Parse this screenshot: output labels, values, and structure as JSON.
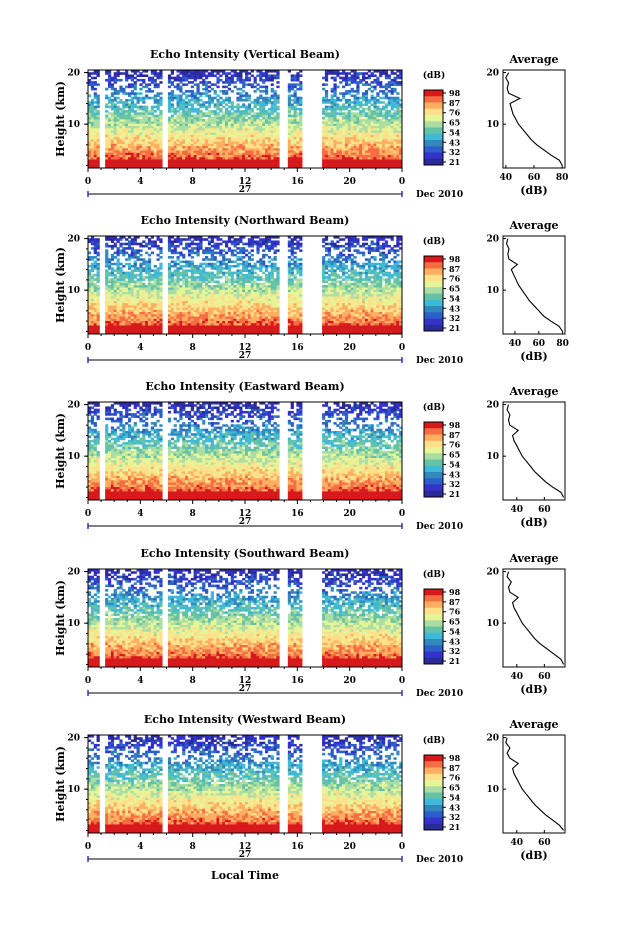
{
  "global": {
    "xlabel": "Local Time",
    "month_label": "Dec 2010",
    "day_label": "27"
  },
  "colorbar": {
    "unit": "(dB)",
    "ticks": [
      "98",
      "87",
      "76",
      "65",
      "54",
      "43",
      "32",
      "21"
    ],
    "colors": [
      "#d7191c",
      "#f46d43",
      "#fdae61",
      "#fee08b",
      "#e6f598",
      "#abdda4",
      "#66c2a5",
      "#3fb9d8",
      "#3288bd",
      "#2c5fc7",
      "#3333cc",
      "#2a2a99"
    ]
  },
  "panels": [
    {
      "title": "Echo Intensity (Vertical Beam)",
      "ylabel": "Height (km)",
      "xticks": [
        "0",
        "4",
        "8",
        "12",
        "16",
        "20",
        "0"
      ],
      "yticks": [
        "20",
        "10"
      ],
      "colorbar_ticks": [
        "98",
        "87",
        "76",
        "65",
        "54",
        "43",
        "32",
        "21"
      ],
      "avg_title": "Average",
      "avg_xlabel": "(dB)",
      "avg_xticks": [
        "40",
        "60",
        "80"
      ],
      "avg_yticks": [
        "20",
        "10"
      ]
    },
    {
      "title": "Echo Intensity (Northward Beam)",
      "ylabel": "Height (km)",
      "xticks": [
        "0",
        "4",
        "8",
        "12",
        "16",
        "20",
        "0"
      ],
      "yticks": [
        "20",
        "10"
      ],
      "colorbar_ticks": [
        "98",
        "87",
        "76",
        "65",
        "54",
        "43",
        "32",
        "21"
      ],
      "avg_title": "Average",
      "avg_xlabel": "(dB)",
      "avg_xticks": [
        "40",
        "60",
        "80"
      ],
      "avg_yticks": [
        "20",
        "10"
      ]
    },
    {
      "title": "Echo Intensity (Eastward Beam)",
      "ylabel": "Height (km)",
      "xticks": [
        "0",
        "4",
        "8",
        "12",
        "16",
        "20",
        "0"
      ],
      "yticks": [
        "20",
        "10"
      ],
      "colorbar_ticks": [
        "98",
        "87",
        "76",
        "65",
        "54",
        "43",
        "32",
        "21"
      ],
      "avg_title": "Average",
      "avg_xlabel": "(dB)",
      "avg_xticks": [
        "40",
        "60"
      ],
      "avg_yticks": [
        "20",
        "10"
      ]
    },
    {
      "title": "Echo Intensity (Southward Beam)",
      "ylabel": "Height (km)",
      "xticks": [
        "0",
        "4",
        "8",
        "12",
        "16",
        "20",
        "0"
      ],
      "yticks": [
        "20",
        "10"
      ],
      "colorbar_ticks": [
        "98",
        "87",
        "76",
        "65",
        "54",
        "43",
        "32",
        "21"
      ],
      "avg_title": "Average",
      "avg_xlabel": "(dB)",
      "avg_xticks": [
        "40",
        "60"
      ],
      "avg_yticks": [
        "20",
        "10"
      ]
    },
    {
      "title": "Echo Intensity (Westward Beam)",
      "ylabel": "Height (km)",
      "xticks": [
        "0",
        "4",
        "8",
        "12",
        "16",
        "20",
        "0"
      ],
      "yticks": [
        "20",
        "10"
      ],
      "colorbar_ticks": [
        "98",
        "87",
        "76",
        "65",
        "54",
        "43",
        "32",
        "21"
      ],
      "avg_title": "Average",
      "avg_xlabel": "(dB)",
      "avg_xticks": [
        "40",
        "60"
      ],
      "avg_yticks": [
        "20",
        "10"
      ]
    }
  ],
  "chart_data": [
    {
      "type": "heatmap",
      "title": "Echo Intensity (Vertical Beam)",
      "xlabel": "Local Time",
      "ylabel": "Height (km)",
      "xlim": [
        0,
        24
      ],
      "ylim": [
        1.5,
        20.5
      ],
      "colorbar": {
        "label": "(dB)",
        "range": [
          21,
          98
        ]
      },
      "data_gaps_hours": [
        [
          0.9,
          1.4
        ],
        [
          5.7,
          6.1
        ],
        [
          14.7,
          15.2
        ],
        [
          16.3,
          17.9
        ]
      ],
      "profile": {
        "title": "Average",
        "xlabel": "(dB)",
        "xlim": [
          38,
          82
        ],
        "height_km": [
          2,
          3,
          4,
          5,
          6,
          7,
          8,
          9,
          10,
          11,
          12,
          13,
          14,
          15,
          16,
          17,
          18,
          19,
          20
        ],
        "db": [
          80,
          78,
          72,
          67,
          62,
          58,
          55,
          52,
          49,
          47,
          45,
          44,
          43,
          50,
          42,
          41,
          42,
          40,
          42
        ]
      }
    },
    {
      "type": "heatmap",
      "title": "Echo Intensity (Northward Beam)",
      "xlabel": "Local Time",
      "ylabel": "Height (km)",
      "xlim": [
        0,
        24
      ],
      "ylim": [
        1.5,
        20.5
      ],
      "colorbar": {
        "label": "(dB)",
        "range": [
          21,
          98
        ]
      },
      "data_gaps_hours": [
        [
          0.9,
          1.4
        ],
        [
          5.7,
          6.1
        ],
        [
          14.7,
          15.2
        ],
        [
          16.3,
          17.9
        ]
      ],
      "profile": {
        "title": "Average",
        "xlabel": "(dB)",
        "xlim": [
          30,
          82
        ],
        "height_km": [
          2,
          3,
          4,
          5,
          6,
          7,
          8,
          9,
          10,
          11,
          12,
          13,
          14,
          15,
          16,
          17,
          18,
          19,
          20
        ],
        "db": [
          80,
          77,
          70,
          64,
          60,
          56,
          52,
          49,
          46,
          43,
          41,
          39,
          37,
          42,
          35,
          34,
          35,
          33,
          34
        ]
      }
    },
    {
      "type": "heatmap",
      "title": "Echo Intensity (Eastward Beam)",
      "xlabel": "Local Time",
      "ylabel": "Height (km)",
      "xlim": [
        0,
        24
      ],
      "ylim": [
        1.5,
        20.5
      ],
      "colorbar": {
        "label": "(dB)",
        "range": [
          21,
          98
        ]
      },
      "data_gaps_hours": [
        [
          0.9,
          1.4
        ],
        [
          5.7,
          6.1
        ],
        [
          14.7,
          15.2
        ],
        [
          16.3,
          17.9
        ]
      ],
      "profile": {
        "title": "Average",
        "xlabel": "(dB)",
        "xlim": [
          30,
          75
        ],
        "height_km": [
          2,
          3,
          4,
          5,
          6,
          7,
          8,
          9,
          10,
          11,
          12,
          13,
          14,
          15,
          16,
          17,
          18,
          19,
          20
        ],
        "db": [
          74,
          72,
          66,
          61,
          57,
          53,
          50,
          47,
          44,
          42,
          40,
          38,
          37,
          41,
          35,
          34,
          35,
          33,
          34
        ]
      }
    },
    {
      "type": "heatmap",
      "title": "Echo Intensity (Southward Beam)",
      "xlabel": "Local Time",
      "ylabel": "Height (km)",
      "xlim": [
        0,
        24
      ],
      "ylim": [
        1.5,
        20.5
      ],
      "colorbar": {
        "label": "(dB)",
        "range": [
          21,
          98
        ]
      },
      "data_gaps_hours": [
        [
          0.9,
          1.4
        ],
        [
          5.7,
          6.1
        ],
        [
          14.7,
          15.2
        ],
        [
          16.3,
          17.9
        ]
      ],
      "profile": {
        "title": "Average",
        "xlabel": "(dB)",
        "xlim": [
          30,
          75
        ],
        "height_km": [
          2,
          3,
          4,
          5,
          6,
          7,
          8,
          9,
          10,
          11,
          12,
          13,
          14,
          15,
          16,
          17,
          18,
          19,
          20
        ],
        "db": [
          74,
          72,
          67,
          62,
          57,
          53,
          50,
          47,
          44,
          42,
          40,
          38,
          37,
          41,
          35,
          34,
          36,
          33,
          34
        ]
      }
    },
    {
      "type": "heatmap",
      "title": "Echo Intensity (Westward Beam)",
      "xlabel": "Local Time",
      "ylabel": "Height (km)",
      "xlim": [
        0,
        24
      ],
      "ylim": [
        1.5,
        20.5
      ],
      "colorbar": {
        "label": "(dB)",
        "range": [
          21,
          98
        ]
      },
      "data_gaps_hours": [
        [
          0.9,
          1.4
        ],
        [
          5.7,
          6.1
        ],
        [
          14.7,
          15.2
        ],
        [
          16.3,
          17.9
        ]
      ],
      "profile": {
        "title": "Average",
        "xlabel": "(dB)",
        "xlim": [
          30,
          75
        ],
        "height_km": [
          2,
          3,
          4,
          5,
          6,
          7,
          8,
          9,
          10,
          11,
          12,
          13,
          14,
          15,
          16,
          17,
          18,
          19,
          20
        ],
        "db": [
          74,
          71,
          66,
          61,
          57,
          53,
          50,
          47,
          44,
          42,
          40,
          38,
          37,
          41,
          35,
          33,
          35,
          32,
          33
        ]
      }
    }
  ]
}
